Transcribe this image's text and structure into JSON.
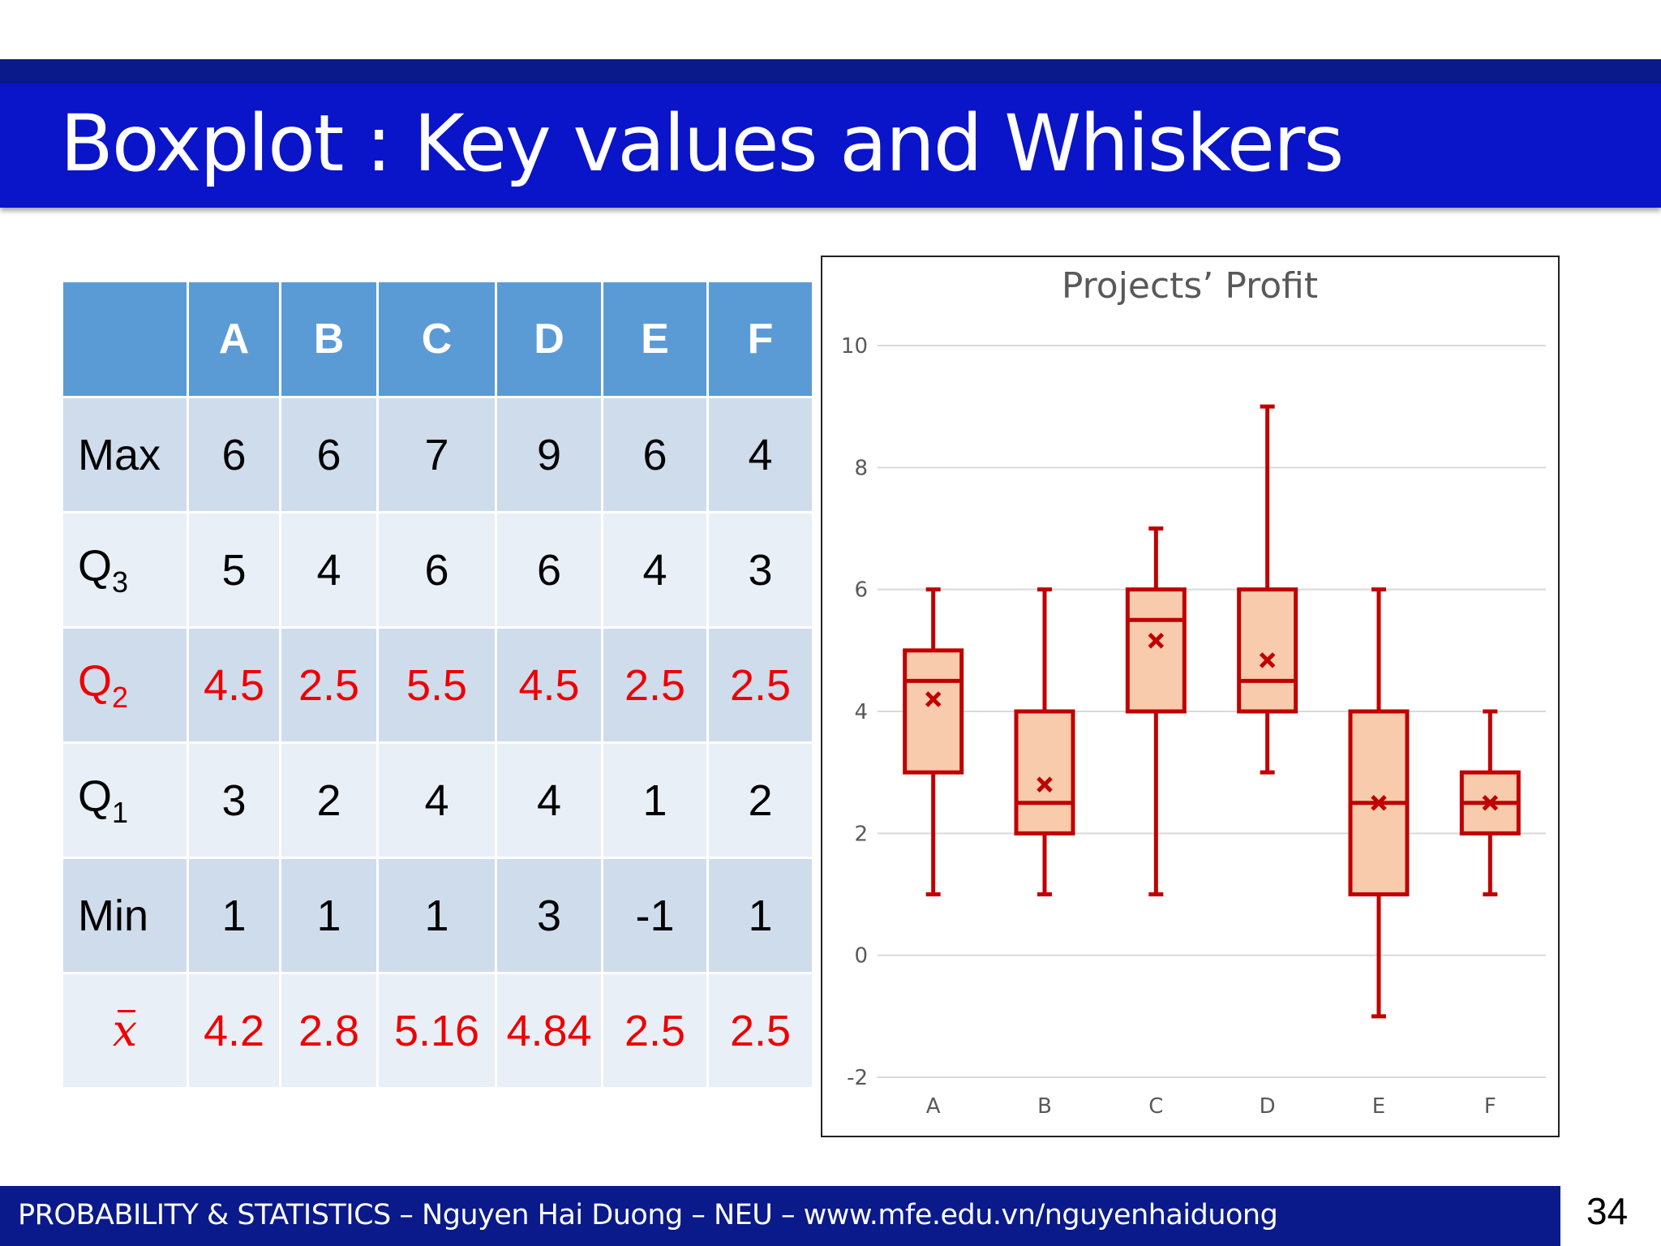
{
  "slide": {
    "title": "Boxplot : Key values and Whiskers",
    "footer": "PROBABILITY & STATISTICS –  Nguyen Hai Duong –  NEU – www.mfe.edu.vn/nguyenhaiduong",
    "page_number": "34"
  },
  "table": {
    "headers": [
      "A",
      "B",
      "C",
      "D",
      "E",
      "F"
    ],
    "rows": [
      {
        "label": "Max",
        "sub": "",
        "values": [
          "6",
          "6",
          "7",
          "9",
          "6",
          "4"
        ]
      },
      {
        "label": "Q",
        "sub": "3",
        "values": [
          "5",
          "4",
          "6",
          "6",
          "4",
          "3"
        ]
      },
      {
        "label": "Q",
        "sub": "2",
        "values": [
          "4.5",
          "2.5",
          "5.5",
          "4.5",
          "2.5",
          "2.5"
        ]
      },
      {
        "label": "Q",
        "sub": "1",
        "values": [
          "3",
          "2",
          "4",
          "4",
          "1",
          "2"
        ]
      },
      {
        "label": "Min",
        "sub": "",
        "values": [
          "1",
          "1",
          "1",
          "3",
          "-1",
          "1"
        ]
      },
      {
        "label": "x",
        "sub": "",
        "values": [
          "4.2",
          "2.8",
          "5.16",
          "4.84",
          "2.5",
          "2.5"
        ]
      }
    ],
    "highlight_color": "#ee0000"
  },
  "chart_data": {
    "type": "boxplot",
    "title": "Projects’ Profit",
    "categories": [
      "A",
      "B",
      "C",
      "D",
      "E",
      "F"
    ],
    "min": [
      1,
      1,
      1,
      3,
      -1,
      1
    ],
    "q1": [
      3,
      2,
      4,
      4,
      1,
      2
    ],
    "median": [
      4.5,
      2.5,
      5.5,
      4.5,
      2.5,
      2.5
    ],
    "q3": [
      5,
      4,
      6,
      6,
      4,
      3
    ],
    "max": [
      6,
      6,
      7,
      9,
      6,
      4
    ],
    "mean": [
      4.2,
      2.8,
      5.16,
      4.84,
      2.5,
      2.5
    ],
    "ylim": [
      -2,
      10
    ],
    "yticks": [
      "-2",
      "0",
      "2",
      "4",
      "6",
      "8",
      "10"
    ],
    "grid": true,
    "box_fill": "#f8cbad",
    "line_color": "#c00000"
  }
}
